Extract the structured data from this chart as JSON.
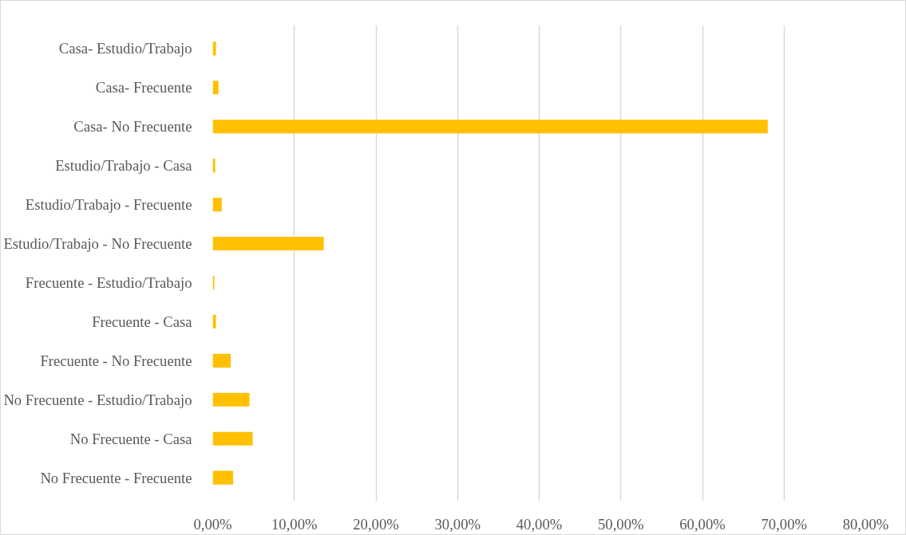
{
  "chart_data": {
    "type": "bar",
    "orientation": "horizontal",
    "categories": [
      "Casa- Estudio/Trabajo",
      "Casa- Frecuente",
      "Casa- No Frecuente",
      "Estudio/Trabajo - Casa",
      "Estudio/Trabajo - Frecuente",
      "Estudio/Trabajo - No Frecuente",
      "Frecuente - Estudio/Trabajo",
      "Frecuente - Casa",
      "Frecuente - No Frecuente",
      "No Frecuente - Estudio/Trabajo",
      "No Frecuente - Casa",
      "No Frecuente - Frecuente"
    ],
    "values": [
      0.4,
      0.7,
      68.0,
      0.3,
      1.1,
      13.6,
      0.2,
      0.4,
      2.2,
      4.5,
      4.9,
      2.5
    ],
    "color": "#ffc000",
    "xlim": [
      0,
      80
    ],
    "xticks": [
      {
        "value": 0,
        "label": "0,00%"
      },
      {
        "value": 10,
        "label": "10,00%"
      },
      {
        "value": 20,
        "label": "20,00%"
      },
      {
        "value": 30,
        "label": "30,00%"
      },
      {
        "value": 40,
        "label": "40,00%"
      },
      {
        "value": 50,
        "label": "50,00%"
      },
      {
        "value": 60,
        "label": "60,00%"
      },
      {
        "value": 70,
        "label": "70,00%"
      },
      {
        "value": 80,
        "label": "80,00%"
      }
    ],
    "grid": "x"
  }
}
